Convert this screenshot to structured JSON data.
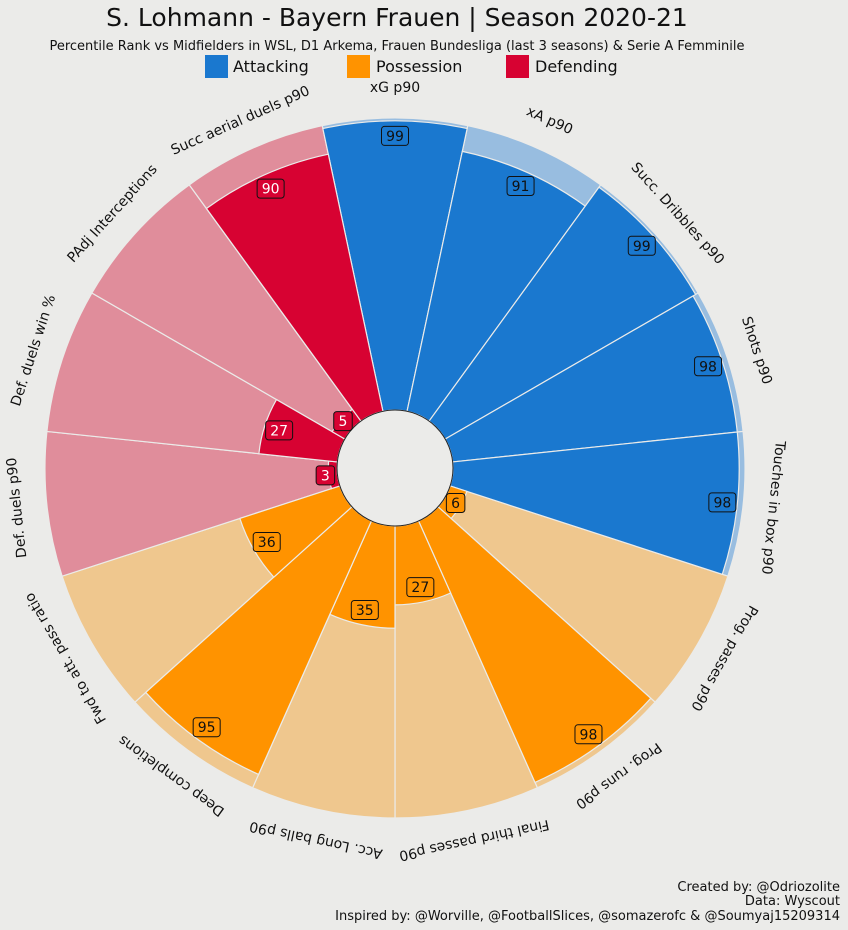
{
  "header": {
    "title": "S. Lohmann - Bayern Frauen | Season 2020-21",
    "subtitle": "Percentile Rank vs Midfielders in WSL, D1 Arkema, Frauen Bundesliga (last 3 seasons) & Serie A Femminile"
  },
  "legend": [
    {
      "label": "Attacking",
      "color": "#1a78cf"
    },
    {
      "label": "Possession",
      "color": "#ff9300"
    },
    {
      "label": "Defending",
      "color": "#d70232"
    }
  ],
  "colors": {
    "background": "#ebebe9",
    "attacking_light": "#98bde0",
    "possession_light": "#efc78e",
    "defending_light": "#e08d9b",
    "attacking_box": "#1a78cf",
    "possession_box": "#ff9300",
    "defending_box": "#d70232"
  },
  "chart_data": {
    "type": "pizza",
    "title": "S. Lohmann - Bayern Frauen | Season 2020-21",
    "ylim": [
      0,
      100
    ],
    "series": [
      {
        "param": "xG p90",
        "value": 99,
        "group": "Attacking"
      },
      {
        "param": "xA p90",
        "value": 91,
        "group": "Attacking"
      },
      {
        "param": "Succ. Dribbles p90",
        "value": 99,
        "group": "Attacking"
      },
      {
        "param": "Shots p90",
        "value": 98,
        "group": "Attacking"
      },
      {
        "param": "Touches in box p90",
        "value": 98,
        "group": "Attacking"
      },
      {
        "param": "Prog. passes p90",
        "value": 6,
        "group": "Possession"
      },
      {
        "param": "Prog. runs p90",
        "value": 98,
        "group": "Possession"
      },
      {
        "param": "Final third passes p90",
        "value": 27,
        "group": "Possession"
      },
      {
        "param": "Acc. Long balls p90",
        "value": 35,
        "group": "Possession"
      },
      {
        "param": "Deep completions",
        "value": 95,
        "group": "Possession"
      },
      {
        "param": "Fwd to att. pass ratio",
        "value": 36,
        "group": "Possession"
      },
      {
        "param": "Def. duels p90",
        "value": 3,
        "group": "Defending"
      },
      {
        "param": "Def. duels win %",
        "value": 27,
        "group": "Defending"
      },
      {
        "param": "PAdj Interceptions",
        "value": 5,
        "group": "Defending"
      },
      {
        "param": "Succ aerial duels p90",
        "value": 90,
        "group": "Defending"
      }
    ]
  },
  "credits": {
    "line1": "Created by: @Odriozolite",
    "line2": "Data: Wyscout",
    "line3": "Inspired by: @Worville, @FootballSlices, @somazerofc & @Soumyaj15209314"
  }
}
